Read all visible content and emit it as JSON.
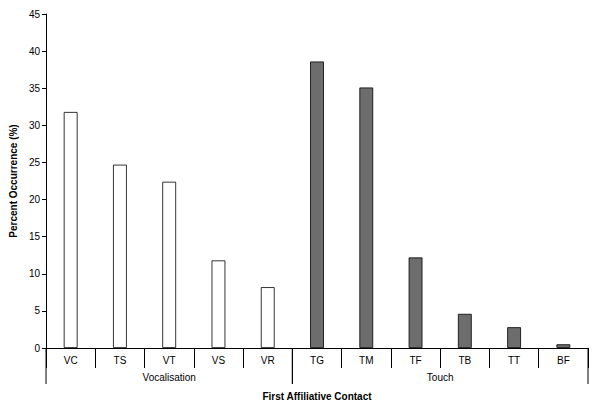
{
  "chart_data": {
    "type": "bar",
    "categories": [
      "VC",
      "TS",
      "VT",
      "VS",
      "VR",
      "TG",
      "TM",
      "TF",
      "TB",
      "TT",
      "BF"
    ],
    "series": [
      {
        "name": "Vocalisation",
        "color": "#ffffff",
        "values": [
          31.8,
          24.7,
          22.4,
          11.8,
          8.2,
          null,
          null,
          null,
          null,
          null,
          null
        ]
      },
      {
        "name": "Touch",
        "color": "#6d6d6d",
        "values": [
          null,
          null,
          null,
          null,
          null,
          38.6,
          35.1,
          12.2,
          4.6,
          2.8,
          0.5
        ]
      }
    ],
    "x_label": "First Affiliative Contact",
    "y_label": "Percent Occurrence (%)",
    "ylim": [
      0,
      45
    ],
    "yticks": [
      0,
      5,
      10,
      15,
      20,
      25,
      30,
      35,
      40,
      45
    ],
    "grid": false
  }
}
